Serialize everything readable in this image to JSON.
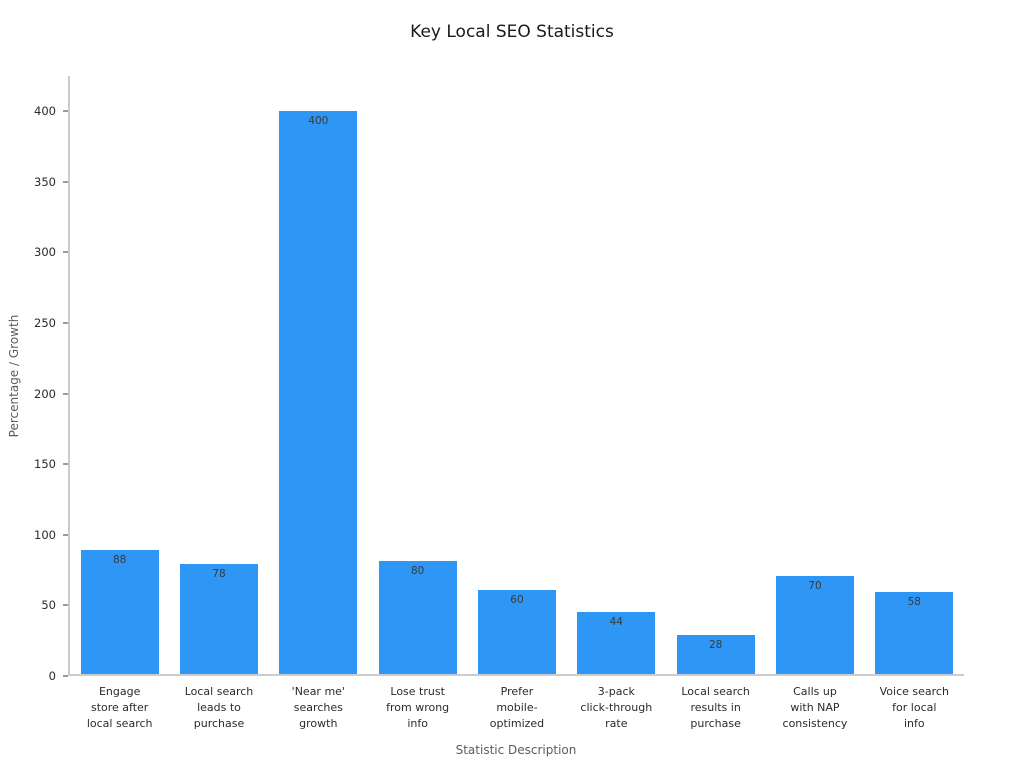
{
  "chart_data": {
    "type": "bar",
    "title": "Key Local SEO Statistics",
    "xlabel": "Statistic Description",
    "ylabel": "Percentage / Growth",
    "categories": [
      "Engage\nstore after\nlocal search",
      "Local search\nleads to\npurchase",
      "'Near me'\nsearches\ngrowth",
      "Lose trust\nfrom wrong\ninfo",
      "Prefer\nmobile-\noptimized",
      "3-pack\nclick-through\nrate",
      "Local search\nresults in\npurchase",
      "Calls up\nwith NAP\nconsistency",
      "Voice search\nfor local\ninfo"
    ],
    "values": [
      88,
      78,
      400,
      80,
      60,
      44,
      28,
      70,
      58
    ],
    "yticks": [
      0,
      50,
      100,
      150,
      200,
      250,
      300,
      350,
      400
    ],
    "ylim": [
      0,
      425
    ],
    "bar_color": "#2E96F5",
    "grid": false,
    "legend_position": "none"
  }
}
